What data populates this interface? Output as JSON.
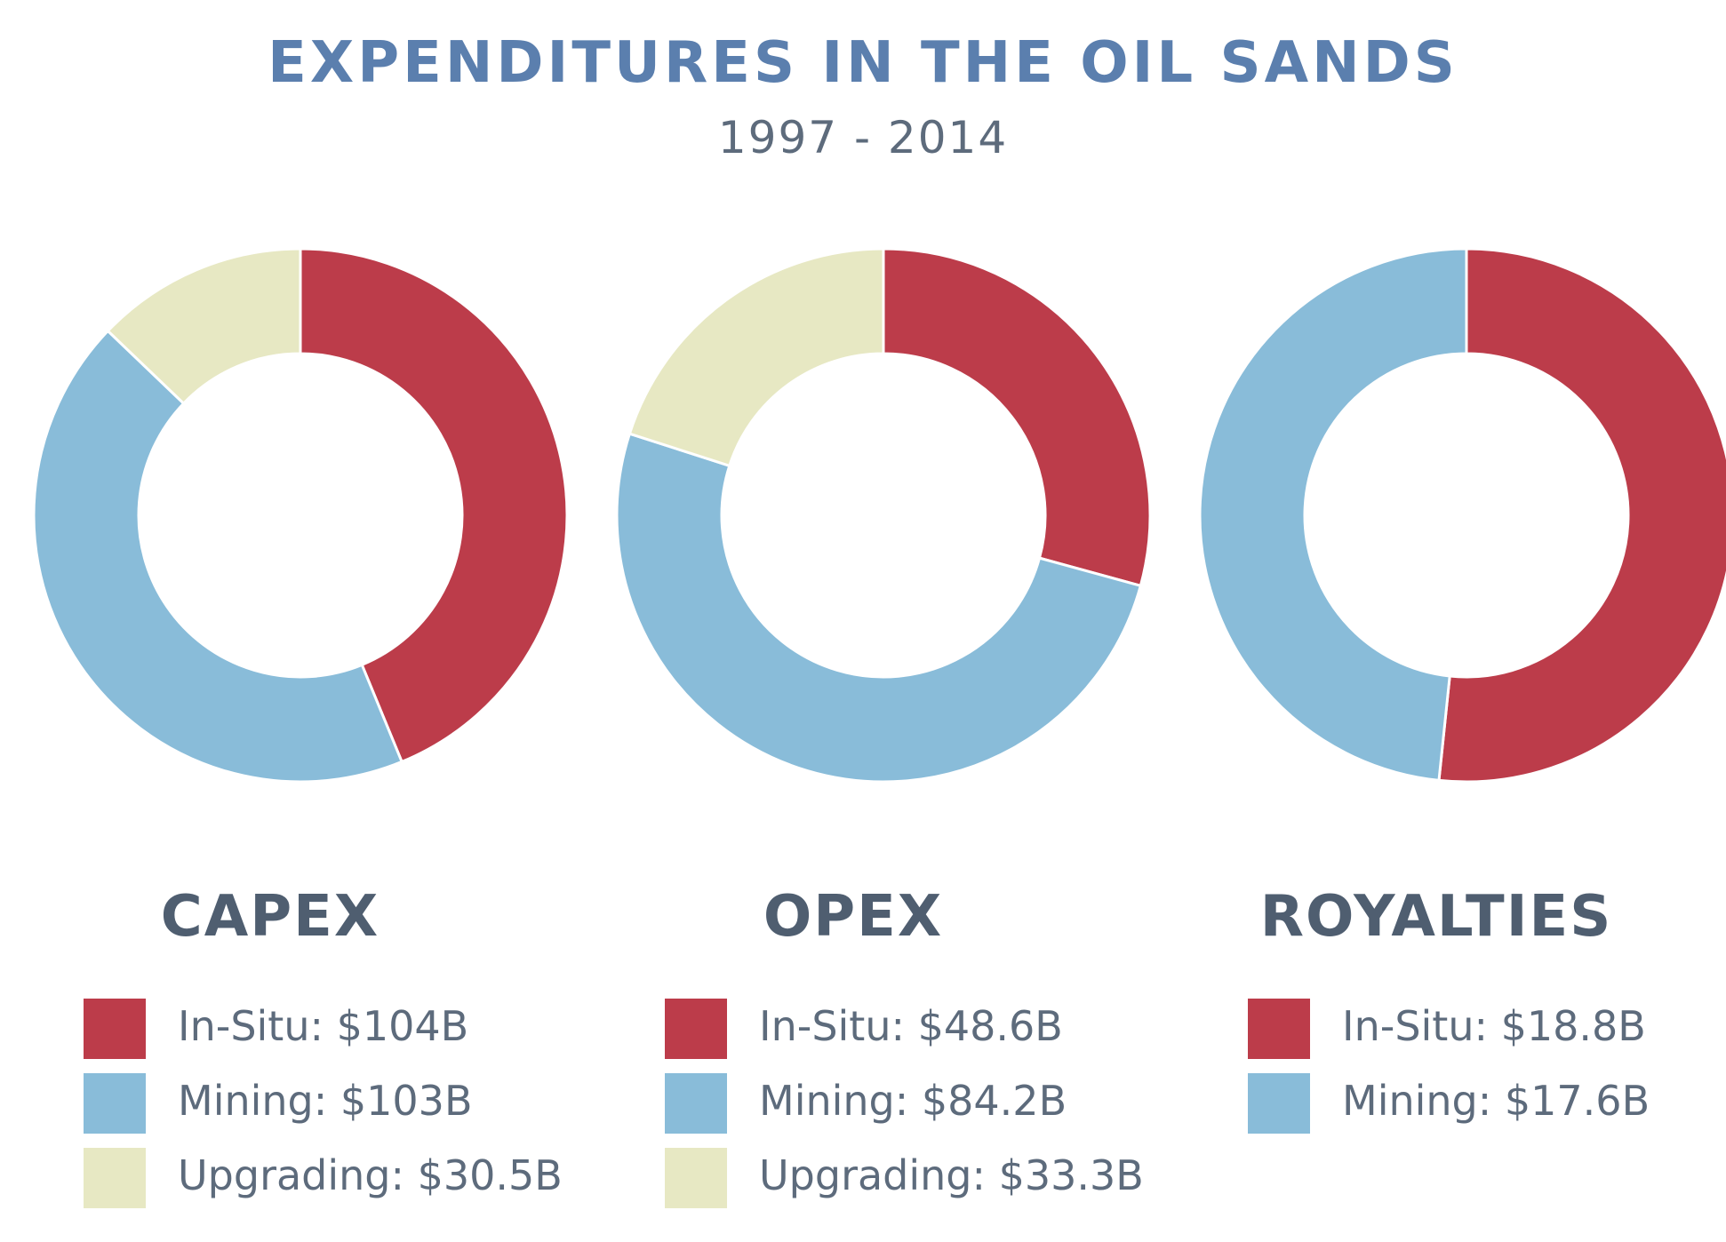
{
  "title": "EXPENDITURES IN THE OIL SANDS",
  "subtitle": "1997 - 2014",
  "colors": {
    "in_situ": "#bc3c4a",
    "mining": "#89bcd9",
    "upgrading": "#e7e8c3"
  },
  "chart_data": [
    {
      "type": "pie",
      "title": "CAPEX",
      "categories": [
        "In-Situ",
        "Mining",
        "Upgrading"
      ],
      "values": [
        104,
        103,
        30.5
      ],
      "labels": [
        "In-Situ: $104B",
        "Mining: $103B",
        "Upgrading: $30.5B"
      ],
      "unit": "$B"
    },
    {
      "type": "pie",
      "title": "OPEX",
      "categories": [
        "In-Situ",
        "Mining",
        "Upgrading"
      ],
      "values": [
        48.6,
        84.2,
        33.3
      ],
      "labels": [
        "In-Situ: $48.6B",
        "Mining: $84.2B",
        "Upgrading: $33.3B"
      ],
      "unit": "$B"
    },
    {
      "type": "pie",
      "title": "ROYALTIES",
      "categories": [
        "In-Situ",
        "Mining"
      ],
      "values": [
        18.8,
        17.6
      ],
      "labels": [
        "In-Situ: $18.8B",
        "Mining: $17.6B"
      ],
      "unit": "$B"
    }
  ]
}
